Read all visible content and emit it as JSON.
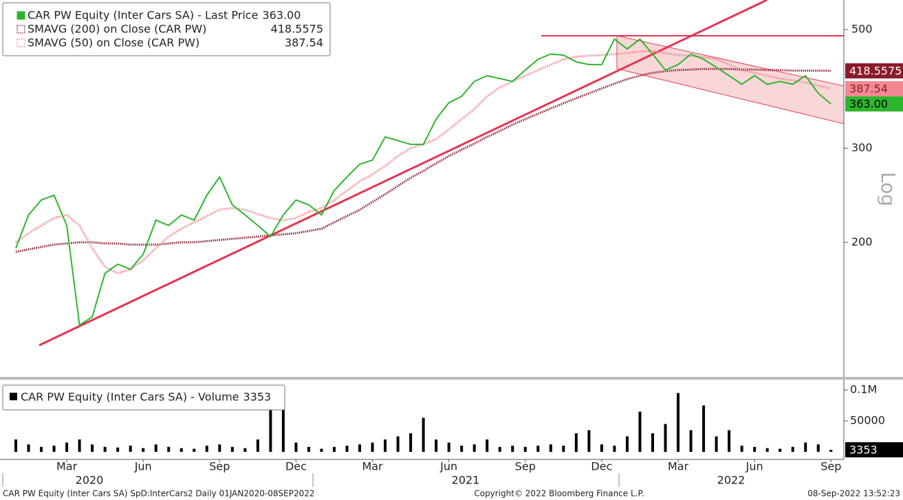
{
  "chart_data": [
    {
      "type": "line",
      "log_scale": true,
      "y_axis_label": "Log",
      "ylim": [
        112,
        568
      ],
      "yticks": [
        200,
        300,
        500
      ],
      "series": [
        {
          "name": "CAR PW Equity (Inter Cars SA) - Last Price",
          "color": "#2db52d",
          "style": "solid",
          "last": {
            "value": 363,
            "label": "363.00"
          },
          "values": [
            195,
            225,
            240,
            245,
            215,
            140,
            145,
            175,
            182,
            178,
            190,
            220,
            215,
            225,
            220,
            245,
            265,
            235,
            225,
            215,
            205,
            225,
            240,
            235,
            225,
            250,
            265,
            280,
            285,
            315,
            310,
            305,
            305,
            340,
            365,
            375,
            400,
            410,
            405,
            400,
            420,
            440,
            450,
            448,
            435,
            430,
            430,
            480,
            460,
            480,
            450,
            420,
            430,
            450,
            440,
            425,
            410,
            395,
            410,
            395,
            400,
            395,
            410,
            380,
            363
          ]
        },
        {
          "name": "SMAVG (200)  on Close (CAR PW)",
          "color": "#8b1a2b",
          "style": "dotted",
          "last": {
            "value": 418.5575,
            "label": "418.5575"
          },
          "values": [
            192,
            194,
            196,
            198,
            199,
            200,
            200,
            199,
            199,
            198,
            198,
            198,
            199,
            200,
            200,
            201,
            202,
            203,
            204,
            205,
            206,
            207,
            208,
            210,
            212,
            218,
            224,
            230,
            238,
            246,
            255,
            264,
            272,
            281,
            290,
            298,
            306,
            315,
            323,
            332,
            340,
            348,
            356,
            364,
            372,
            380,
            388,
            396,
            404,
            410,
            415,
            418,
            420,
            421,
            422,
            422,
            422,
            421,
            421,
            420,
            420,
            419,
            419,
            419,
            418.5575
          ]
        },
        {
          "name": "SMAVG (50)  on Close (CAR PW)",
          "color": "#f08a90",
          "style": "dotted",
          "last": {
            "value": 387.54,
            "label": "387.54"
          },
          "values": [
            200,
            208,
            215,
            222,
            225,
            215,
            195,
            180,
            175,
            178,
            185,
            195,
            205,
            212,
            218,
            224,
            230,
            232,
            230,
            226,
            222,
            220,
            222,
            228,
            232,
            240,
            250,
            260,
            268,
            278,
            290,
            300,
            305,
            312,
            325,
            340,
            355,
            375,
            390,
            400,
            410,
            420,
            430,
            440,
            445,
            447,
            448,
            450,
            452,
            455,
            456,
            452,
            448,
            446,
            444,
            440,
            430,
            420,
            415,
            410,
            405,
            402,
            398,
            393,
            387.54
          ]
        }
      ]
    },
    {
      "type": "bar",
      "ylim": [
        0,
        110000
      ],
      "yticks": [
        50000,
        {
          "value": 100000,
          "label": "0.1M"
        }
      ],
      "categories": [
        null,
        null,
        null,
        null,
        "Mar",
        null,
        null,
        null,
        null,
        null,
        "Jun",
        null,
        null,
        null,
        null,
        null,
        "Sep",
        null,
        null,
        null,
        null,
        null,
        "Dec",
        null,
        null,
        null,
        null,
        null,
        "Mar",
        null,
        null,
        null,
        null,
        null,
        "Jun",
        null,
        null,
        null,
        null,
        null,
        "Sep",
        null,
        null,
        null,
        null,
        null,
        "Dec",
        null,
        null,
        null,
        null,
        null,
        "Mar",
        null,
        null,
        null,
        null,
        null,
        "Jun",
        null,
        null,
        null,
        null,
        null,
        "Sep"
      ],
      "year_labels": [
        "2020",
        "2021",
        "2022"
      ],
      "series": [
        {
          "name": "CAR PW Equity (Inter Cars SA) - Volume",
          "color": "#000000",
          "last": 3353,
          "values": [
            20000,
            12000,
            8000,
            10000,
            15000,
            20000,
            12000,
            8000,
            7000,
            10000,
            6000,
            12000,
            8000,
            6000,
            5000,
            10000,
            12000,
            8000,
            6000,
            20000,
            85000,
            85000,
            15000,
            8000,
            5000,
            8000,
            10000,
            12000,
            15000,
            20000,
            25000,
            30000,
            55000,
            20000,
            15000,
            10000,
            12000,
            20000,
            8000,
            10000,
            8000,
            10000,
            12000,
            10000,
            30000,
            35000,
            12000,
            10000,
            25000,
            65000,
            30000,
            45000,
            95000,
            35000,
            75000,
            25000,
            35000,
            10000,
            8000,
            6000,
            5000,
            8000,
            15000,
            12000,
            3353
          ]
        }
      ]
    }
  ],
  "footer": {
    "left": "CAR PW Equity (Inter Cars SA) SpD:InterCars2  Daily 01JAN2020-08SEP2022",
    "center": "Copyright© 2022 Bloomberg Finance L.P.",
    "right": "08-Sep-2022 13:52:23"
  }
}
